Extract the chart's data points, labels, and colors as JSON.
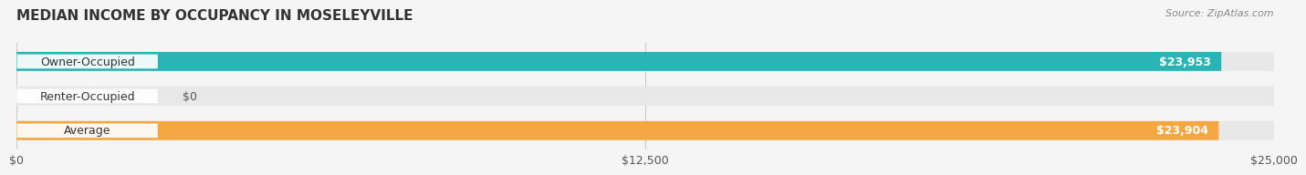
{
  "title": "MEDIAN INCOME BY OCCUPANCY IN MOSELEYVILLE",
  "source": "Source: ZipAtlas.com",
  "categories": [
    "Owner-Occupied",
    "Renter-Occupied",
    "Average"
  ],
  "values": [
    23953,
    0,
    23904
  ],
  "bar_colors": [
    "#2ab5b5",
    "#b39ddb",
    "#f5a742"
  ],
  "label_colors": [
    "#2ab5b5",
    "#b39ddb",
    "#f5a742"
  ],
  "value_labels": [
    "$23,953",
    "$0",
    "$23,904"
  ],
  "xlim": [
    0,
    25000
  ],
  "xticks": [
    0,
    12500,
    25000
  ],
  "xtick_labels": [
    "$0",
    "$12,500",
    "$25,000"
  ],
  "bar_height": 0.55,
  "background_color": "#f5f5f5",
  "bar_bg_color": "#e8e8e8",
  "title_fontsize": 11,
  "label_fontsize": 9,
  "value_fontsize": 9,
  "source_fontsize": 8
}
